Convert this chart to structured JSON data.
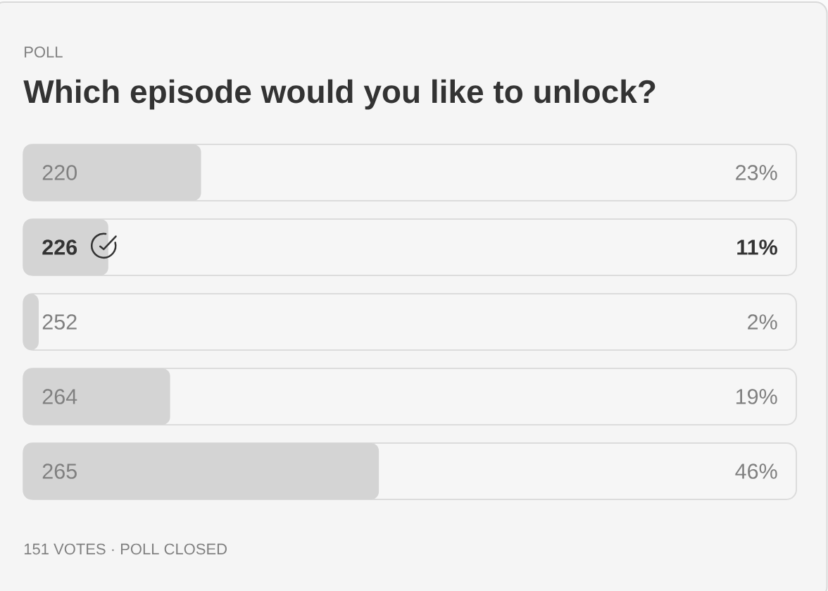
{
  "chart_data": {
    "type": "bar",
    "orientation": "horizontal",
    "title": "Which episode would you like to unlock?",
    "annotations": [
      "POLL",
      "151 VOTES · POLL CLOSED"
    ],
    "categories": [
      "220",
      "**226**",
      "252",
      "264",
      "265"
    ],
    "values": [
      23,
      11,
      2,
      19,
      46
    ],
    "value_labels": [
      "23%",
      "**11%**",
      "2%",
      "19%",
      "46%"
    ],
    "color": "#d4d4d4",
    "xlim": [
      0,
      100
    ],
    "tick_labels": "y"
  }
}
